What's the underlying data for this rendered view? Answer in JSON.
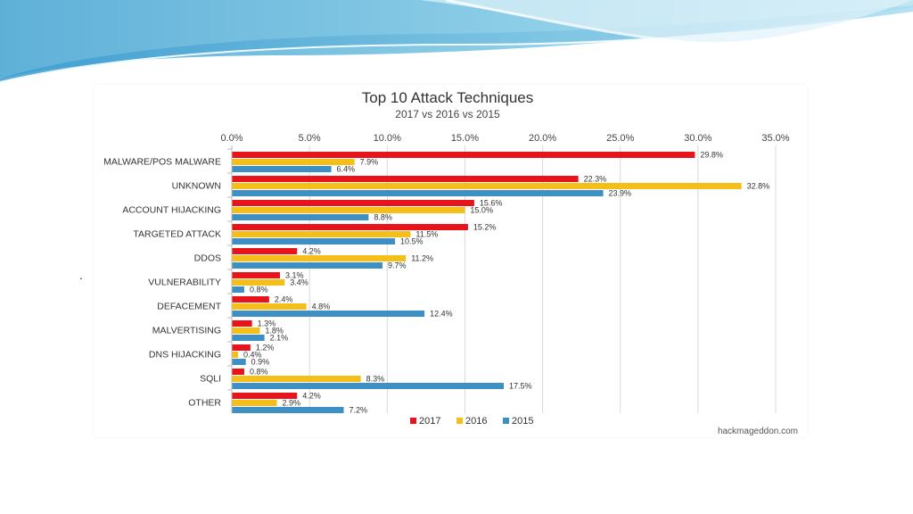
{
  "slide": {
    "bullet": "."
  },
  "chart_data": {
    "type": "bar",
    "orientation": "horizontal",
    "title": "Top 10 Attack Techniques",
    "subtitle": "2017 vs 2016 vs 2015",
    "source": "hackmageddon.com",
    "xlim": [
      0,
      35
    ],
    "x_ticks": [
      "0.0%",
      "5.0%",
      "10.0%",
      "15.0%",
      "20.0%",
      "25.0%",
      "30.0%",
      "35.0%"
    ],
    "grid": "vertical",
    "legend": "bottom-center",
    "categories": [
      "MALWARE/POS MALWARE",
      "UNKNOWN",
      "ACCOUNT HIJACKING",
      "TARGETED ATTACK",
      "DDOS",
      "VULNERABILITY",
      "DEFACEMENT",
      "MALVERTISING",
      "DNS HIJACKING",
      "SQLI",
      "OTHER"
    ],
    "series": [
      {
        "name": "2017",
        "color": "#e8141c",
        "values": [
          29.8,
          22.3,
          15.6,
          15.2,
          4.2,
          3.1,
          2.4,
          1.3,
          1.2,
          0.8,
          4.2
        ],
        "labels": [
          "29.8%",
          "22.3%",
          "15.6%",
          "15.2%",
          "4.2%",
          "3.1%",
          "2.4%",
          "1.3%",
          "1.2%",
          "0.8%",
          "4.2%"
        ]
      },
      {
        "name": "2016",
        "color": "#f5bf1a",
        "values": [
          7.9,
          32.8,
          15.0,
          11.5,
          11.2,
          3.4,
          4.8,
          1.8,
          0.4,
          8.3,
          2.9
        ],
        "labels": [
          "7.9%",
          "32.8%",
          "15.0%",
          "11.5%",
          "11.2%",
          "3.4%",
          "4.8%",
          "1.8%",
          "0.4%",
          "8.3%",
          "2.9%"
        ]
      },
      {
        "name": "2015",
        "color": "#3e8fc4",
        "values": [
          6.4,
          23.9,
          8.8,
          10.5,
          9.7,
          0.8,
          12.4,
          2.1,
          0.9,
          17.5,
          7.2
        ],
        "labels": [
          "6.4%",
          "23.9%",
          "8.8%",
          "10.5%",
          "9.7%",
          "0.8%",
          "12.4%",
          "2.1%",
          "0.9%",
          "17.5%",
          "7.2%"
        ]
      }
    ]
  }
}
